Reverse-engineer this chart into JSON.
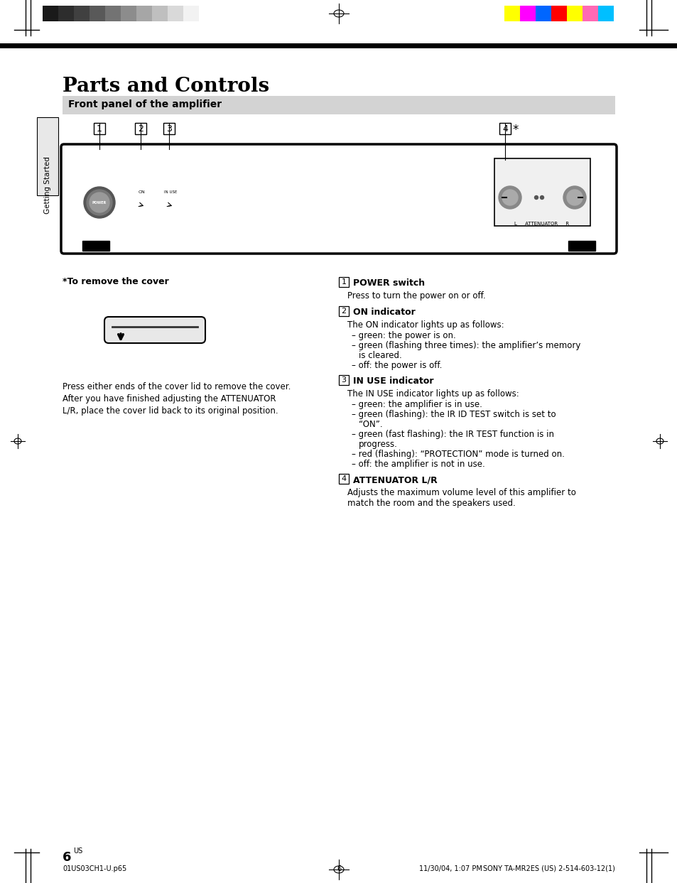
{
  "page_bg": "#ffffff",
  "title": "Parts and Controls",
  "section_header": "Front panel of the amplifier",
  "page_number": "6",
  "page_number_sup": "US",
  "footer_left": "01US03CH1-U.p65",
  "footer_center": "6",
  "footer_right_date": "11/30/04, 1:07 PM",
  "footer_brand": "SONY TA-MR2ES (US) 2-514-603-12(1)",
  "getting_started_label": "Getting Started",
  "color_bar_left_colors": [
    "#1a1a1a",
    "#2d2d2d",
    "#404040",
    "#595959",
    "#737373",
    "#8c8c8c",
    "#a6a6a6",
    "#bfbfbf",
    "#d9d9d9",
    "#f2f2f2"
  ],
  "color_bar_right_colors": [
    "#ffff00",
    "#ff00ff",
    "#0066ff",
    "#ff0000",
    "#ffff00",
    "#ff69b4",
    "#00bfff"
  ],
  "items": [
    {
      "num": "1",
      "heading": "POWER switch",
      "body": "Press to turn the power on or off."
    },
    {
      "num": "2",
      "heading": "ON indicator",
      "intro": "The ON indicator lights up as follows:",
      "bullets": [
        "green: the power is on.",
        "green (flashing three times): the amplifier’s memory\n  is cleared.",
        "off: the power is off."
      ]
    },
    {
      "num": "3",
      "heading": "IN USE indicator",
      "intro": "The IN USE indicator lights up as follows:",
      "bullets": [
        "green: the amplifier is in use.",
        "green (flashing): the IR ID TEST switch is set to\n  “ON”.",
        "green (fast flashing): the IR TEST function is in\n  progress.",
        "red (flashing): “PROTECTION” mode is turned on.",
        "off: the amplifier is not in use."
      ]
    },
    {
      "num": "4",
      "heading": "ATTENUATOR L/R",
      "body": "Adjusts the maximum volume level of this amplifier to\nmatch the room and the speakers used."
    }
  ],
  "remove_cover_title": "*To remove the cover",
  "remove_cover_text": "Press either ends of the cover lid to remove the cover.\nAfter you have finished adjusting the ATTENUATOR\nL/R, place the cover lid back to its original position."
}
